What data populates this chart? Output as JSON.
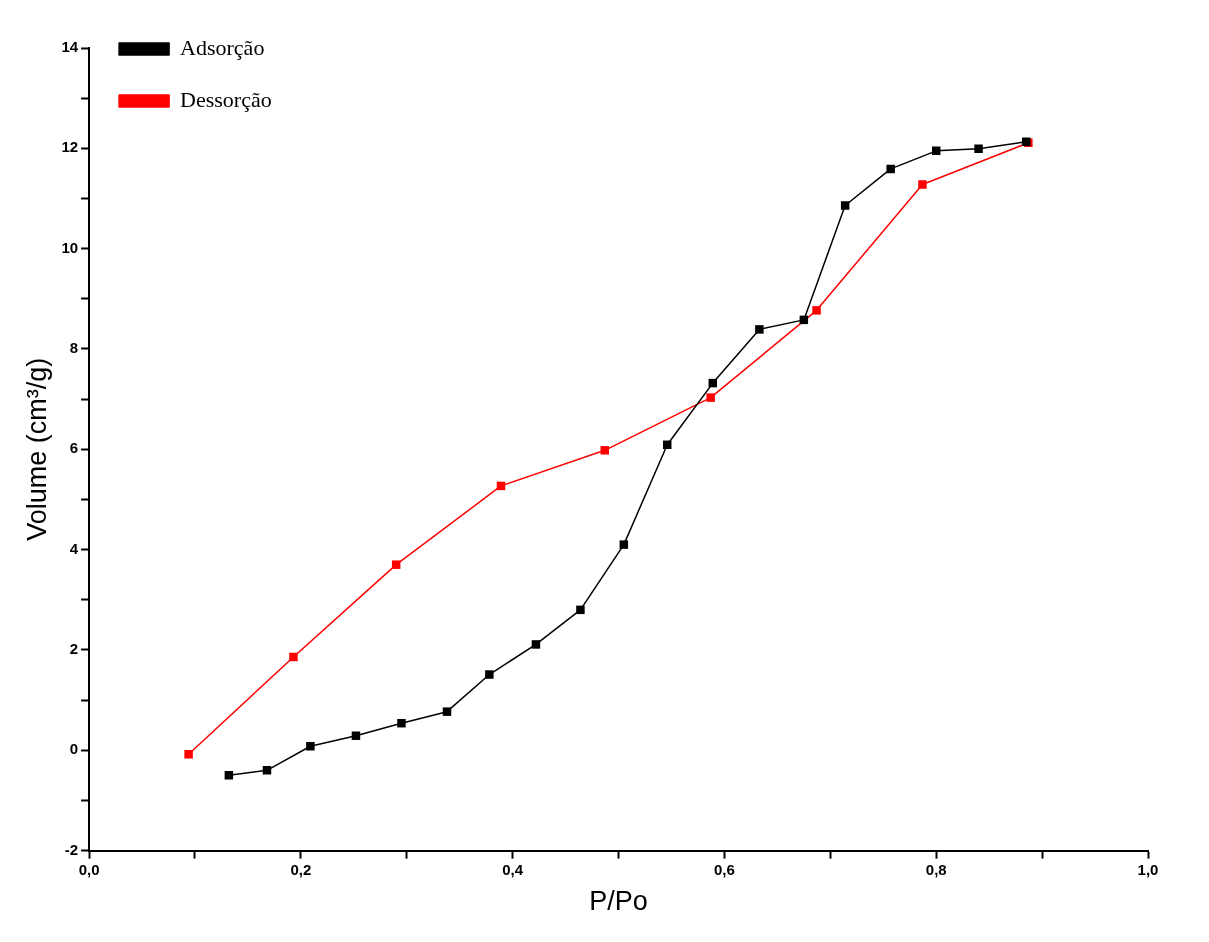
{
  "chart_data": {
    "type": "line",
    "xlabel": "P/Po",
    "ylabel": "Volume (cm³/g)",
    "xlim": [
      0,
      1
    ],
    "ylim": [
      -2,
      14
    ],
    "xticks": [
      {
        "value": 0,
        "label": "0,0"
      },
      {
        "value": 0.2,
        "label": "0,2"
      },
      {
        "value": 0.4,
        "label": "0,4"
      },
      {
        "value": 0.6,
        "label": "0,6"
      },
      {
        "value": 0.8,
        "label": "0,8"
      },
      {
        "value": 1,
        "label": "1,0"
      }
    ],
    "yticks": [
      -2,
      0,
      2,
      4,
      6,
      8,
      10,
      12,
      14
    ],
    "marker": "square",
    "line_style": "solid",
    "legend": "top left",
    "grid": false,
    "series": [
      {
        "name": "Adsorção",
        "color": "#000000",
        "x": [
          0.132,
          0.168,
          0.209,
          0.252,
          0.295,
          0.338,
          0.378,
          0.422,
          0.464,
          0.505,
          0.546,
          0.589,
          0.633,
          0.675,
          0.714,
          0.757,
          0.8,
          0.84,
          0.885
        ],
        "values": [
          -0.5,
          -0.4,
          0.08,
          0.29,
          0.54,
          0.77,
          1.51,
          2.11,
          2.8,
          4.1,
          6.09,
          7.32,
          8.39,
          8.58,
          10.86,
          11.59,
          11.95,
          11.99,
          12.13
        ]
      },
      {
        "name": "Dessorção",
        "color": "#ff0000",
        "x": [
          0.094,
          0.193,
          0.29,
          0.389,
          0.487,
          0.587,
          0.687,
          0.787,
          0.887
        ],
        "values": [
          -0.08,
          1.86,
          3.7,
          5.27,
          5.98,
          7.03,
          8.77,
          11.28,
          12.11
        ]
      }
    ]
  }
}
